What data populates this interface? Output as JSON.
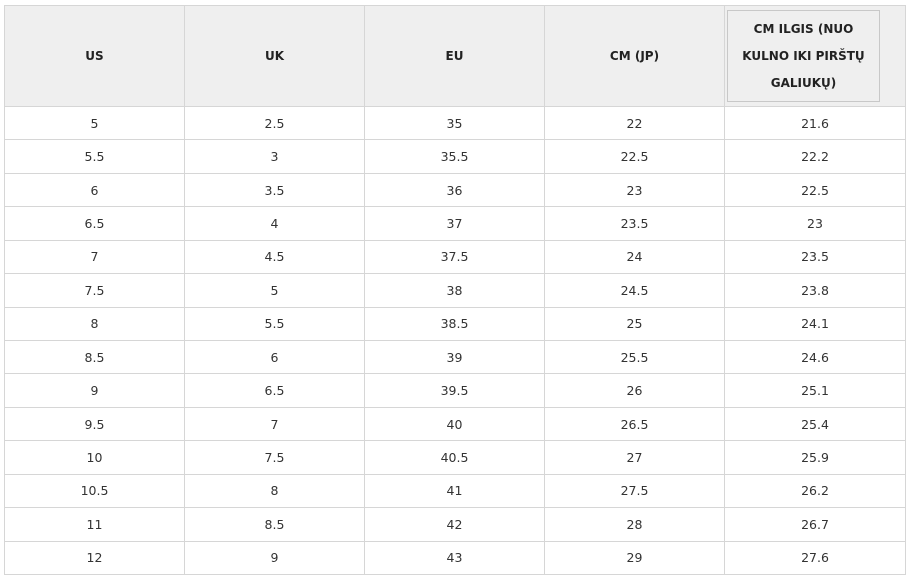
{
  "table": {
    "headers": [
      "US",
      "UK",
      "EU",
      "CM (JP)",
      "CM ILGIS (NUO KULNO IKI PIRŠTŲ GALIUKŲ)"
    ],
    "rows": [
      [
        "5",
        "2.5",
        "35",
        "22",
        "21.6"
      ],
      [
        "5.5",
        "3",
        "35.5",
        "22.5",
        "22.2"
      ],
      [
        "6",
        "3.5",
        "36",
        "23",
        "22.5"
      ],
      [
        "6.5",
        "4",
        "37",
        "23.5",
        "23"
      ],
      [
        "7",
        "4.5",
        "37.5",
        "24",
        "23.5"
      ],
      [
        "7.5",
        "5",
        "38",
        "24.5",
        "23.8"
      ],
      [
        "8",
        "5.5",
        "38.5",
        "25",
        "24.1"
      ],
      [
        "8.5",
        "6",
        "39",
        "25.5",
        "24.6"
      ],
      [
        "9",
        "6.5",
        "39.5",
        "26",
        "25.1"
      ],
      [
        "9.5",
        "7",
        "40",
        "26.5",
        "25.4"
      ],
      [
        "10",
        "7.5",
        "40.5",
        "27",
        "25.9"
      ],
      [
        "10.5",
        "8",
        "41",
        "27.5",
        "26.2"
      ],
      [
        "11",
        "8.5",
        "42",
        "28",
        "26.7"
      ],
      [
        "12",
        "9",
        "43",
        "29",
        "27.6"
      ]
    ]
  }
}
